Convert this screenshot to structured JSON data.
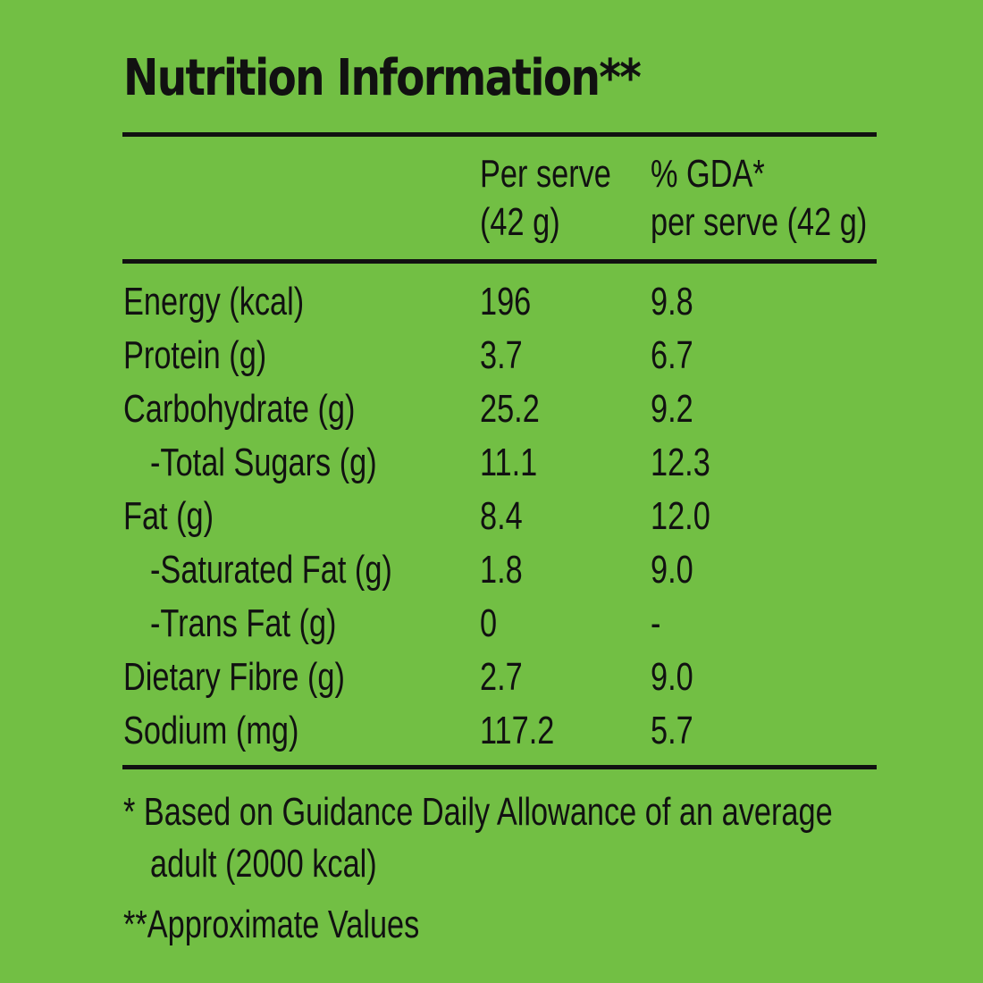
{
  "title": "Nutrition Information**",
  "columns": {
    "per_serve_line1": "Per serve",
    "per_serve_line2": "(42 g)",
    "gda_line1": "% GDA*",
    "gda_line2": "per serve (42 g)"
  },
  "rows": [
    {
      "label": "Energy (kcal)",
      "per_serve": "196",
      "gda": "9.8"
    },
    {
      "label": "Protein (g)",
      "per_serve": "3.7",
      "gda": "6.7"
    },
    {
      "label": "Carbohydrate (g)",
      "per_serve": "25.2",
      "gda": "9.2"
    },
    {
      "label": "-Total Sugars (g)",
      "per_serve": "11.1",
      "gda": "12.3"
    },
    {
      "label": "Fat (g)",
      "per_serve": "8.4",
      "gda": "12.0"
    },
    {
      "label": "-Saturated Fat (g)",
      "per_serve": "1.8",
      "gda": "9.0"
    },
    {
      "label": "-Trans Fat (g)",
      "per_serve": "0",
      "gda": "-"
    },
    {
      "label": "Dietary Fibre (g)",
      "per_serve": "2.7",
      "gda": "9.0"
    },
    {
      "label": "Sodium (mg)",
      "per_serve": "117.2",
      "gda": "5.7"
    }
  ],
  "footnotes": {
    "gda_line1": "* Based on Guidance Daily Allowance of an average",
    "gda_line2": "adult (2000 kcal)",
    "approx": "**Approximate Values"
  },
  "colors": {
    "background": "#72bf44",
    "text": "#111111"
  }
}
